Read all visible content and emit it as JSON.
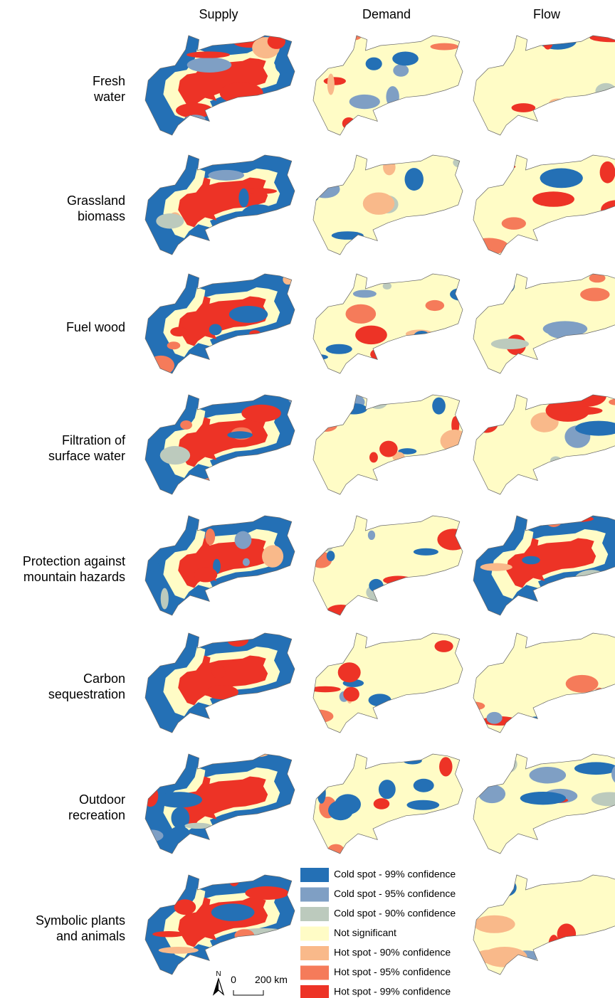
{
  "columns": [
    "Supply",
    "Demand",
    "Flow"
  ],
  "rows": [
    {
      "lines": [
        "Fresh",
        "water"
      ]
    },
    {
      "lines": [
        "Grassland",
        "biomass"
      ]
    },
    {
      "lines": [
        "Fuel wood"
      ]
    },
    {
      "lines": [
        "Filtration of",
        "surface water"
      ]
    },
    {
      "lines": [
        "Protection against",
        "mountain hazards"
      ]
    },
    {
      "lines": [
        "Carbon",
        "sequestration"
      ]
    },
    {
      "lines": [
        "Outdoor",
        "recreation"
      ]
    },
    {
      "lines": [
        "Symbolic plants",
        "and animals"
      ]
    }
  ],
  "legend": [
    {
      "label": "Cold spot - 99% confidence",
      "color": "#2470b5"
    },
    {
      "label": "Cold spot - 95% confidence",
      "color": "#7f9fc4"
    },
    {
      "label": "Cold spot - 90% confidence",
      "color": "#bccabd"
    },
    {
      "label": "Not significant",
      "color": "#fffcc6"
    },
    {
      "label": "Hot spot - 90% confidence",
      "color": "#f9b98a"
    },
    {
      "label": "Hot spot - 95% confidence",
      "color": "#f57b5a"
    },
    {
      "label": "Hot spot - 99% confidence",
      "color": "#ed3326"
    }
  ],
  "scale_bar": {
    "north": "N",
    "start": "0",
    "end": "200 km"
  }
}
